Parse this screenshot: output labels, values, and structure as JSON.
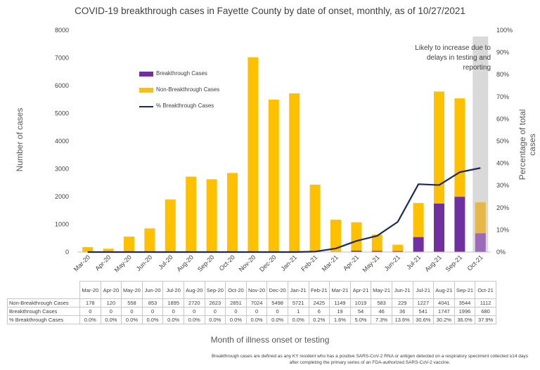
{
  "chart_data": {
    "type": "bar",
    "stacked": true,
    "title": "COVID-19 breakthrough cases in Fayette County by date of onset, monthly, as of 10/27/2021",
    "xlabel": "Month of illness onset or testing",
    "ylabel": "Number of cases",
    "y2label": "Percentage of total cases",
    "ylim": [
      0,
      8000
    ],
    "y2lim": [
      0,
      100
    ],
    "yticks": [
      "0",
      "1000",
      "2000",
      "3000",
      "4000",
      "5000",
      "6000",
      "7000",
      "8000"
    ],
    "y2ticks": [
      "0%",
      "10%",
      "20%",
      "30%",
      "40%",
      "50%",
      "60%",
      "70%",
      "80%",
      "90%",
      "100%"
    ],
    "categories": [
      "Mar-20",
      "Apr-20",
      "May-20",
      "Jun-20",
      "Jul-20",
      "Aug-20",
      "Sep-20",
      "Oct-20",
      "Nov-20",
      "Dec-20",
      "Jan-21",
      "Feb-21",
      "Mar-21",
      "Apr-21",
      "May-21",
      "Jun-21",
      "Jul-21",
      "Aug-21",
      "Sep-21",
      "Oct-21"
    ],
    "series": [
      {
        "name": "Breakthrough Cases",
        "color": "#7030a0",
        "values": [
          0,
          0,
          0,
          0,
          0,
          0,
          0,
          0,
          0,
          0,
          1,
          6,
          19,
          54,
          46,
          36,
          541,
          1747,
          1996,
          680
        ]
      },
      {
        "name": "Non-Breakthrough Cases",
        "color": "#ffc000",
        "values": [
          178,
          120,
          558,
          853,
          1895,
          2720,
          2623,
          2851,
          7024,
          5498,
          5721,
          2425,
          1149,
          1019,
          583,
          229,
          1227,
          4041,
          3544,
          1112
        ]
      },
      {
        "name": "% Breakthrough Cases",
        "color": "#1c2a56",
        "axis": "right",
        "values": [
          0,
          0,
          0,
          0,
          0,
          0,
          0,
          0,
          0,
          0,
          0,
          0.2,
          1.6,
          5.0,
          7.3,
          13.6,
          30.6,
          30.2,
          36.0,
          37.9
        ]
      }
    ],
    "table_rows": {
      "non_breakthrough": [
        "178",
        "120",
        "558",
        "853",
        "1895",
        "2720",
        "2623",
        "2851",
        "7024",
        "5498",
        "5721",
        "2425",
        "1149",
        "1019",
        "583",
        "229",
        "1227",
        "4041",
        "3544",
        "1112"
      ],
      "breakthrough": [
        "0",
        "0",
        "0",
        "0",
        "0",
        "0",
        "0",
        "0",
        "0",
        "0",
        "1",
        "6",
        "19",
        "54",
        "46",
        "36",
        "541",
        "1747",
        "1996",
        "680"
      ],
      "pct": [
        "0.0%",
        "0.0%",
        "0.0%",
        "0.0%",
        "0.0%",
        "0.0%",
        "0.0%",
        "0.0%",
        "0.0%",
        "0.0%",
        "0.0%",
        "0.2%",
        "1.6%",
        "5.0%",
        "7.3%",
        "13.6%",
        "30.6%",
        "30.2%",
        "36.0%",
        "37.9%"
      ]
    },
    "table_row_labels": [
      "Non-Breakthrough Cases",
      "Breakthrough Cases",
      "% Breakthrough Cases"
    ],
    "annotation": "Likely to increase due to delays in testing and reporting",
    "footnote": "Breakthrough cases are defined as any KY resident who has a positive SARS-CoV-2 RNA or antigen detected on a respiratory speciment collected ≥14 days after completing the primary series of an FDA-authorized SARS-CoV-2 vaccine.",
    "legend_position": "upper-left",
    "grid": false,
    "colors": {
      "shade": "#d9d9d9",
      "oct_breakthrough": "#9b6bb8",
      "oct_non_breakthrough": "#e6b84a"
    }
  }
}
